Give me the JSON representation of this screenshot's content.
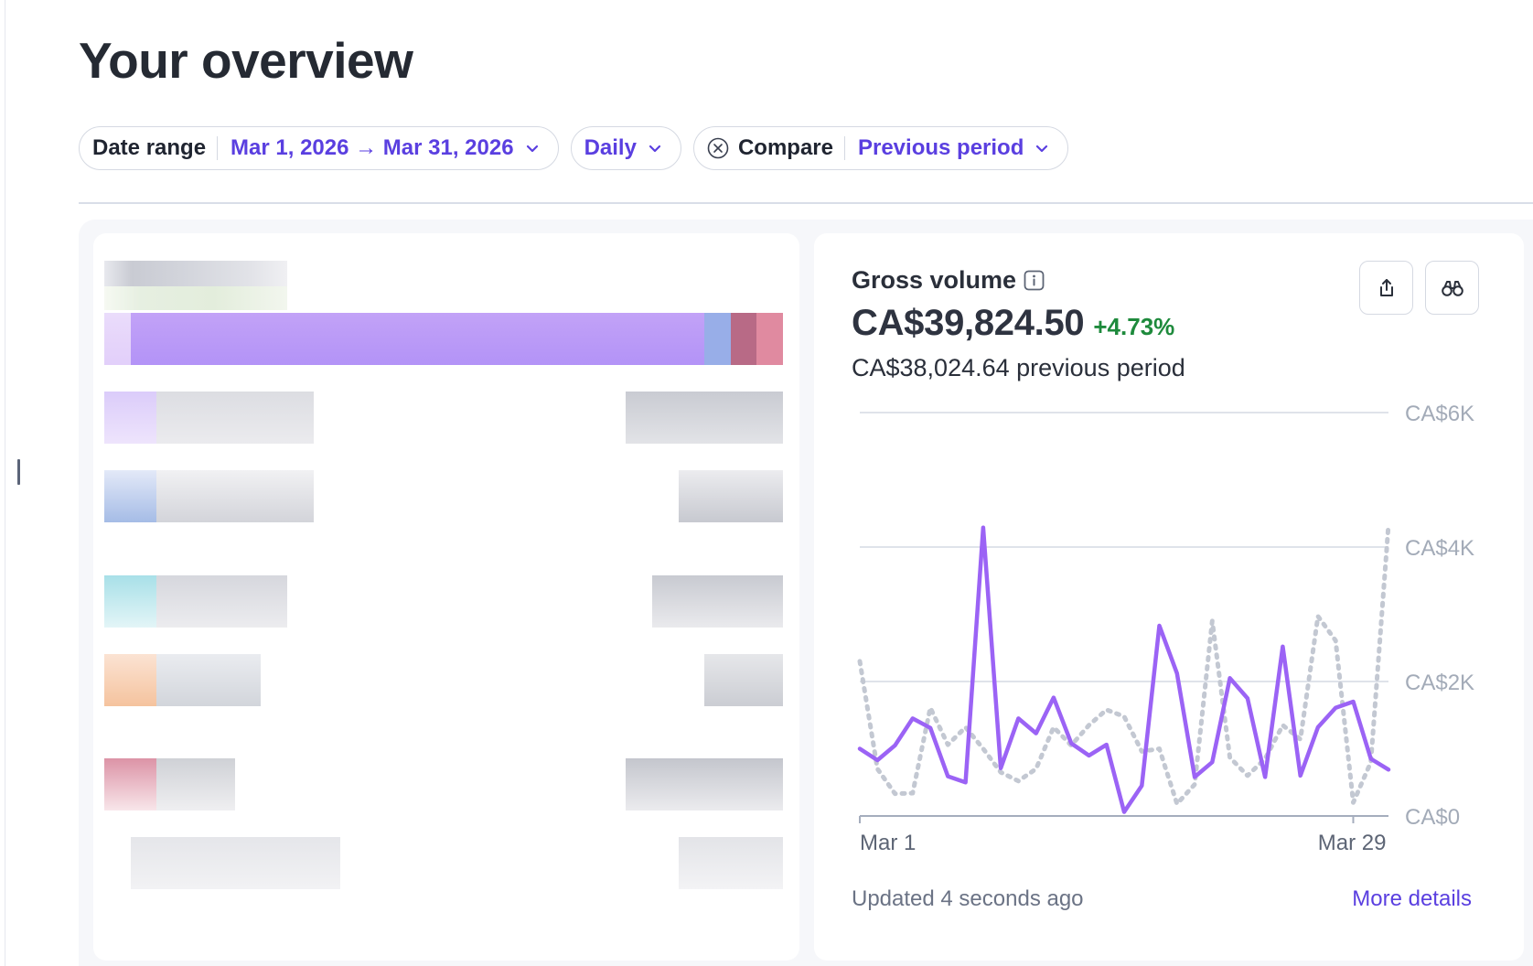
{
  "page": {
    "title": "Your overview"
  },
  "filters": {
    "date_range": {
      "label": "Date range",
      "value": "Mar 1, 2026 → Mar 31, 2026"
    },
    "interval": {
      "value": "Daily"
    },
    "compare": {
      "label": "Compare",
      "value": "Previous period"
    }
  },
  "icons": {
    "chevron": "chevron-down-icon",
    "compare_clear": "close-circle-icon",
    "info": "info-icon",
    "export": "share-export-icon",
    "explore": "binoculars-icon"
  },
  "gross_volume": {
    "title": "Gross volume",
    "amount": "CA$39,824.50",
    "change": "+4.73%",
    "previous": "CA$38,024.64 previous period",
    "updated": "Updated 4 seconds ago",
    "more_details": "More details"
  },
  "colors": {
    "accent": "#5a3fe0",
    "current_series": "#9b63f5",
    "previous_series": "#c3c8d2",
    "positive": "#1e8a3c"
  },
  "chart_data": {
    "type": "line",
    "y_ticks": [
      "CA$0",
      "CA$2K",
      "CA$4K",
      "CA$6K"
    ],
    "ylim": [
      0,
      6000
    ],
    "x_ticks": [
      "Mar 1",
      "Mar 29"
    ],
    "grid": true,
    "series": [
      {
        "style": "solid",
        "values": [
          1000,
          830,
          1050,
          1450,
          1310,
          590,
          500,
          4290,
          710,
          1450,
          1230,
          1760,
          1080,
          900,
          1060,
          60,
          450,
          2830,
          2120,
          580,
          800,
          2050,
          1750,
          580,
          2520,
          600,
          1320,
          1610,
          1700,
          850,
          690
        ]
      },
      {
        "style": "dotted",
        "values": [
          2300,
          700,
          330,
          340,
          1610,
          1060,
          1320,
          1000,
          650,
          520,
          700,
          1320,
          1050,
          1350,
          1580,
          1480,
          960,
          1000,
          180,
          470,
          2900,
          870,
          600,
          850,
          1350,
          1140,
          2970,
          2610,
          200,
          800,
          4330
        ]
      }
    ]
  }
}
